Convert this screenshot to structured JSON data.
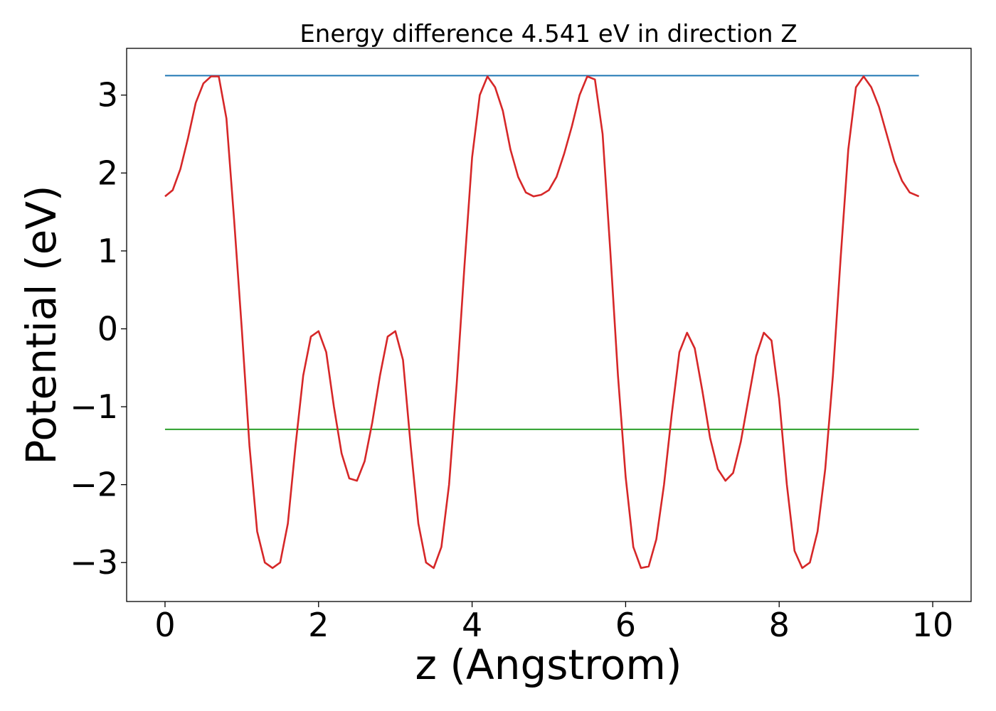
{
  "chart_data": {
    "type": "line",
    "title": "Energy difference 4.541 eV in direction Z",
    "xlabel": "z (Angstrom)",
    "ylabel": "Potential (eV)",
    "xlim": [
      -0.5,
      10.5
    ],
    "ylim": [
      -3.5,
      3.6
    ],
    "grid": false,
    "x_ticks": [
      0,
      2,
      4,
      6,
      8,
      10
    ],
    "x_tick_labels": [
      "0",
      "2",
      "4",
      "6",
      "8",
      "10"
    ],
    "y_ticks": [
      -3,
      -2,
      -1,
      0,
      1,
      2,
      3
    ],
    "y_tick_labels": [
      "−3",
      "−2",
      "−1",
      "0",
      "1",
      "2",
      "3"
    ],
    "series": [
      {
        "color": "#1f77b4",
        "x": [
          0,
          9.82
        ],
        "y": [
          3.25,
          3.25
        ]
      },
      {
        "color": "#2ca02c",
        "x": [
          0,
          9.82
        ],
        "y": [
          -1.29,
          -1.29
        ]
      },
      {
        "color": "#d62728",
        "x": [
          0,
          0.1,
          0.2,
          0.3,
          0.4,
          0.5,
          0.6,
          0.7,
          0.8,
          0.9,
          1.0,
          1.1,
          1.2,
          1.3,
          1.4,
          1.5,
          1.6,
          1.7,
          1.8,
          1.9,
          2.0,
          2.1,
          2.2,
          2.3,
          2.4,
          2.5,
          2.6,
          2.7,
          2.8,
          2.9,
          3.0,
          3.1,
          3.2,
          3.3,
          3.4,
          3.5,
          3.6,
          3.7,
          3.8,
          3.9,
          4.0,
          4.1,
          4.2,
          4.3,
          4.4,
          4.5,
          4.6,
          4.7,
          4.8,
          4.9,
          5.0,
          5.1,
          5.2,
          5.3,
          5.4,
          5.5,
          5.6,
          5.7,
          5.8,
          5.9,
          6.0,
          6.1,
          6.2,
          6.3,
          6.4,
          6.5,
          6.6,
          6.7,
          6.8,
          6.9,
          7.0,
          7.1,
          7.2,
          7.3,
          7.4,
          7.5,
          7.6,
          7.7,
          7.8,
          7.9,
          8.0,
          8.1,
          8.2,
          8.3,
          8.4,
          8.5,
          8.6,
          8.7,
          8.8,
          8.9,
          9.0,
          9.1,
          9.2,
          9.3,
          9.4,
          9.5,
          9.6,
          9.7,
          9.82
        ],
        "y": [
          1.7,
          1.78,
          2.05,
          2.45,
          2.9,
          3.15,
          3.24,
          3.24,
          2.7,
          1.4,
          0.0,
          -1.5,
          -2.6,
          -3.0,
          -3.07,
          -3.0,
          -2.5,
          -1.5,
          -0.6,
          -0.1,
          -0.03,
          -0.3,
          -1.0,
          -1.6,
          -1.92,
          -1.95,
          -1.7,
          -1.2,
          -0.6,
          -0.1,
          -0.03,
          -0.4,
          -1.5,
          -2.5,
          -3.0,
          -3.07,
          -2.8,
          -2.0,
          -0.7,
          0.8,
          2.2,
          3.0,
          3.24,
          3.1,
          2.8,
          2.3,
          1.95,
          1.75,
          1.7,
          1.72,
          1.78,
          1.95,
          2.25,
          2.6,
          3.0,
          3.24,
          3.2,
          2.5,
          1.0,
          -0.6,
          -1.9,
          -2.8,
          -3.07,
          -3.05,
          -2.7,
          -2.0,
          -1.1,
          -0.3,
          -0.05,
          -0.25,
          -0.8,
          -1.4,
          -1.8,
          -1.95,
          -1.85,
          -1.45,
          -0.9,
          -0.35,
          -0.05,
          -0.15,
          -0.9,
          -2.0,
          -2.85,
          -3.07,
          -3.0,
          -2.6,
          -1.8,
          -0.6,
          0.9,
          2.3,
          3.1,
          3.24,
          3.1,
          2.85,
          2.5,
          2.15,
          1.9,
          1.75,
          1.7
        ]
      }
    ]
  }
}
